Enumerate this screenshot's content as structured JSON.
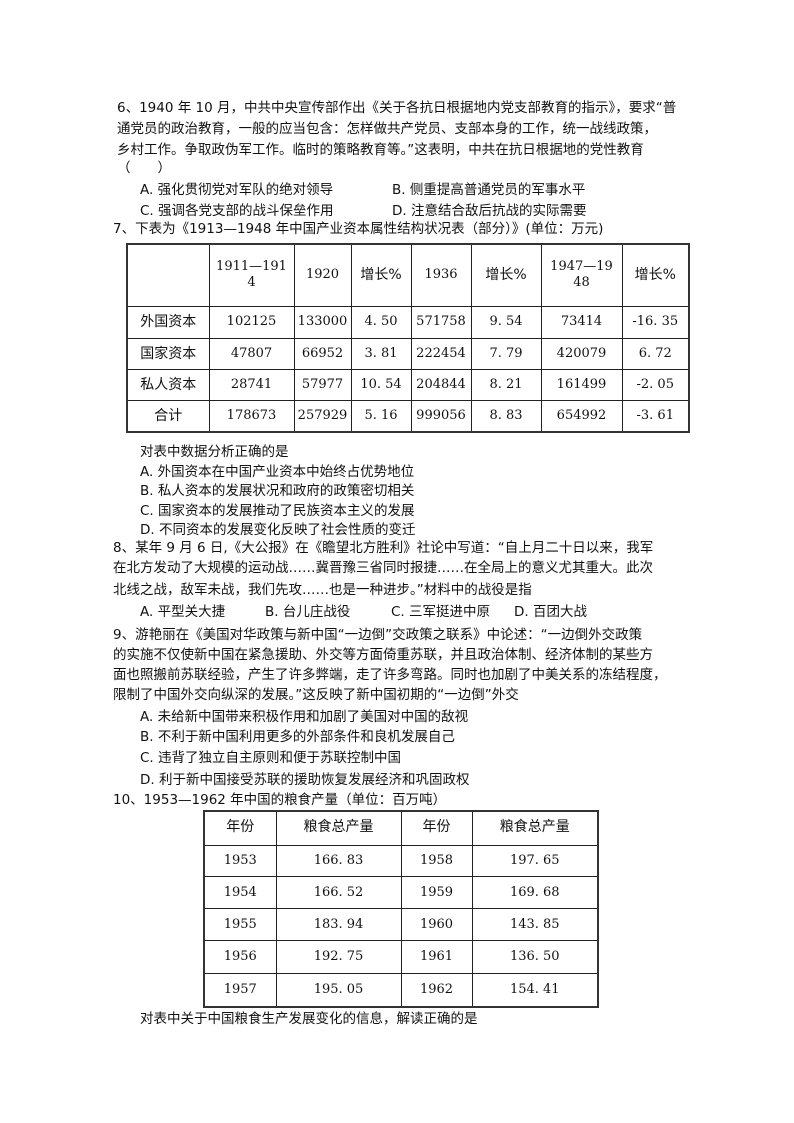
{
  "q6": {
    "lines": [
      "6、1940 年 10 月，中共中央宣传部作出《关于各抗日根据地内党支部教育的指示》，要求“普",
      "通党员的政治教育，一般的应当包含：怎样做共产党员、支部本身的工作，统一战线政策，",
      "乡村工作。争取政伪军工作。临时的策略教育等。”这表明，中共在抗日根据地的党性教育",
      "（　　）"
    ],
    "options": [
      "A. 强化贯彻党对军队的绝对领导",
      "B. 侧重提高普通党员的军事水平",
      "C. 强调各党支部的战斗保垒作用",
      "D. 注意结合敌后抗战的实际需要"
    ]
  },
  "q7": {
    "title": "7、下表为《1913—1948 年中国产业资本属性结构状况表（部分）》(单位：万元)",
    "table": {
      "headers": [
        "",
        "1911—1914",
        "1920",
        "增长%",
        "1936",
        "增长%",
        "1947—1948",
        "增长%"
      ],
      "rows": [
        [
          "外国资本",
          "102125",
          "133000",
          "4. 50",
          "571758",
          "9. 54",
          "73414",
          "-16. 35"
        ],
        [
          "国家资本",
          "47807",
          "66952",
          "3. 81",
          "222454",
          "7. 79",
          "420079",
          "6. 72"
        ],
        [
          "私人资本",
          "28741",
          "57977",
          "10. 54",
          "204844",
          "8. 21",
          "161499",
          "-2. 05"
        ],
        [
          "合计",
          "178673",
          "257929",
          "5. 16",
          "999056",
          "8. 83",
          "654992",
          "-3. 61"
        ]
      ]
    },
    "stem": "对表中数据分析正确的是",
    "options": [
      "A. 外国资本在中国产业资本中始终占优势地位",
      "B. 私人资本的发展状况和政府的政策密切相关",
      "C. 国家资本的发展推动了民族资本主义的发展",
      "D. 不同资本的发展变化反映了社会性质的变迁"
    ]
  },
  "q8": {
    "lines": [
      "8、某年 9 月 6 日,《大公报》在《瞻望北方胜利》社论中写道：“自上月二十日以来，我军",
      "在北方发动了大规模的运动战……冀晋豫三省同时报捷……在全局上的意义尤其重大。此次",
      "北线之战，敌军未战，我们先攻……也是一种进步。”材料中的战役是指"
    ],
    "options": [
      "A. 平型关大捷",
      "B. 台儿庄战役",
      "C. 三军挺进中原",
      "D. 百团大战"
    ]
  },
  "q9": {
    "lines": [
      "9、游艳丽在《美国对华政策与新中国“一边倒”交政策之联系》中论述：“一边倒外交政策",
      "的实施不仅使新中国在紧急援助、外交等方面倚重苏联，并且政治体制、经济体制的某些方",
      "面也照搬前苏联经验，产生了许多弊端，走了许多弯路。同时也加剧了中美关系的冻结程度，",
      "限制了中国外交向纵深的发展。”这反映了新中国初期的“一边倒”外交"
    ],
    "options": [
      "A. 未给新中国带来积极作用和加剧了美国对中国的敌视",
      "B. 不利于新中国利用更多的外部条件和良机发展自己",
      "C. 违背了独立自主原则和便于苏联控制中国",
      "D. 利于新中国接受苏联的援助恢复发展经济和巩固政权"
    ]
  },
  "q10": {
    "title": "10、1953—1962 年中国的粮食产量（单位：百万吨）",
    "table": {
      "headers": [
        "年份",
        "粮食总产量",
        "年份",
        "粮食总产量"
      ],
      "rows": [
        [
          "1953",
          "166. 83",
          "1958",
          "197. 65"
        ],
        [
          "1954",
          "166. 52",
          "1959",
          "169. 68"
        ],
        [
          "1955",
          "183. 94",
          "1960",
          "143. 85"
        ],
        [
          "1956",
          "192. 75",
          "1961",
          "136. 50"
        ],
        [
          "1957",
          "195. 05",
          "1962",
          "154. 41"
        ]
      ]
    },
    "stem": "对表中关于中国粮食生产发展变化的信息，解读正确的是"
  }
}
